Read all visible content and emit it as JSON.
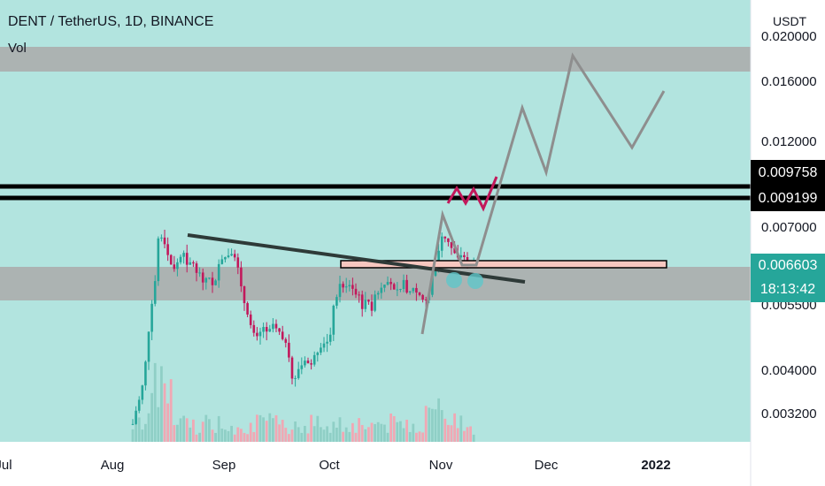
{
  "header": {
    "title": "DENT / TetherUS, 1D, BINANCE",
    "volume_label": "Vol"
  },
  "axis": {
    "currency": "USDT",
    "y_ticks": [
      "0.020000",
      "0.016000",
      "0.012000",
      "0.007000",
      "0.005500",
      "0.004000",
      "0.003200"
    ],
    "x_ticks": [
      "Jul",
      "Aug",
      "Sep",
      "Oct",
      "Nov",
      "Dec",
      "2022"
    ]
  },
  "levels": {
    "upper": "0.009758",
    "lower": "0.009199"
  },
  "current_price": {
    "value": "0.006603",
    "countdown": "18:13:42"
  },
  "colors": {
    "up": "#26a69a",
    "down": "#c2185b",
    "vol_up": "#8fcfc6",
    "vol_down": "#f0a8b4",
    "band": "#aaaaaa",
    "background_zone": "#b2e4df",
    "projection": "#8e8e8e",
    "zigzag": "#c2185b",
    "trendline": "#2e3a38",
    "resistance_box": "#f7c7c0"
  },
  "chart_data": {
    "type": "candlestick",
    "title": "DENT / TetherUS, 1D, BINANCE",
    "y_scale": "log",
    "ylim": [
      0.0028,
      0.022
    ],
    "x": [
      "Jul",
      "Aug",
      "Sep",
      "Oct",
      "Nov",
      "Dec",
      "2022"
    ],
    "horizontal_levels": [
      0.009758,
      0.009199
    ],
    "last_price": 0.006603,
    "zones": [
      {
        "name": "upper band",
        "range": [
          0.0175,
          0.0195
        ]
      },
      {
        "name": "support band",
        "range": [
          0.0057,
          0.0065
        ]
      }
    ]
  }
}
